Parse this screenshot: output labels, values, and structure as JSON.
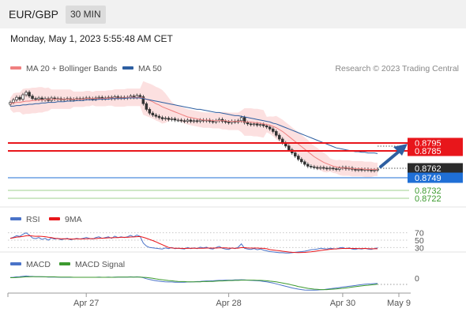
{
  "header": {
    "pair": "EUR/GBP",
    "timeframe": "30 MIN"
  },
  "datetime": "Monday, May 1, 2023 5:55:48 AM CET",
  "legend": {
    "ma20": "MA 20 + Bollinger Bands",
    "ma50": "MA 50",
    "credit": "Research © 2023 Trading Central",
    "ma20_color": "#f08080",
    "ma50_color": "#2e5fa1"
  },
  "levels": [
    {
      "label": "0.8795",
      "value": 0.8795,
      "kind": "resistance",
      "color": "#e8161b"
    },
    {
      "label": "0.8785",
      "value": 0.8785,
      "kind": "resistance",
      "color": "#e8161b"
    },
    {
      "label": "0.8762",
      "value": 0.8762,
      "kind": "last",
      "color": "#333333"
    },
    {
      "label": "0.8749",
      "value": 0.8749,
      "kind": "pivot",
      "color": "#1f6fd6"
    },
    {
      "label": "0.8732",
      "value": 0.8732,
      "kind": "support",
      "color": "#3c9a2f"
    },
    {
      "label": "0.8722",
      "value": 0.8722,
      "kind": "support",
      "color": "#3c9a2f"
    }
  ],
  "rsi_panel": {
    "rsi_label": "RSI",
    "ma_label": "9MA",
    "rsi_color": "#4a73c8",
    "ma_color": "#e8161b",
    "levels": [
      "70",
      "50",
      "30"
    ]
  },
  "macd_panel": {
    "macd_label": "MACD",
    "signal_label": "MACD Signal",
    "macd_color": "#4a73c8",
    "signal_color": "#3c9a2f",
    "zero_label": "0"
  },
  "xaxis": {
    "labels": [
      "Apr 27",
      "Apr 28",
      "Apr 30",
      "May 9"
    ]
  },
  "chart_data": {
    "type": "candlestick",
    "x_ticks": [
      "Apr 27",
      "Apr 28",
      "Apr 30",
      "May 9"
    ],
    "price_range": [
      0.8705,
      0.8905
    ],
    "close": [
      0.8868,
      0.8872,
      0.8876,
      0.8873,
      0.888,
      0.8884,
      0.8878,
      0.8874,
      0.8873,
      0.8875,
      0.8872,
      0.8874,
      0.8871,
      0.8875,
      0.8873,
      0.8874,
      0.8872,
      0.8873,
      0.8874,
      0.8872,
      0.8873,
      0.8874,
      0.8873,
      0.8874,
      0.8875,
      0.8874,
      0.8873,
      0.8875,
      0.8876,
      0.8874,
      0.8875,
      0.8876,
      0.8874,
      0.8877,
      0.8875,
      0.8876,
      0.8875,
      0.8876,
      0.8878,
      0.8876,
      0.8879,
      0.8877,
      0.8866,
      0.8857,
      0.8851,
      0.8848,
      0.8846,
      0.8844,
      0.8842,
      0.8843,
      0.8841,
      0.8842,
      0.884,
      0.884,
      0.8839,
      0.8838,
      0.884,
      0.8838,
      0.8839,
      0.8838,
      0.884,
      0.8839,
      0.884,
      0.8838,
      0.8837,
      0.8839,
      0.8841,
      0.8838,
      0.8837,
      0.8836,
      0.8838,
      0.8837,
      0.8839,
      0.8844,
      0.8836,
      0.8834,
      0.8833,
      0.8834,
      0.8832,
      0.8833,
      0.8831,
      0.8829,
      0.8826,
      0.8822,
      0.8816,
      0.881,
      0.8804,
      0.8799,
      0.8793,
      0.8788,
      0.8783,
      0.8778,
      0.8774,
      0.877,
      0.8767,
      0.8766,
      0.8765,
      0.8764,
      0.8765,
      0.8764,
      0.8763,
      0.8764,
      0.8763,
      0.8762,
      0.8764,
      0.8765,
      0.8763,
      0.8764,
      0.8762,
      0.8761,
      0.8762,
      0.8761,
      0.8762,
      0.8761,
      0.876,
      0.8761,
      0.8762
    ],
    "ma20": [
      0.8866,
      0.8867,
      0.8868,
      0.8868,
      0.8869,
      0.887,
      0.887,
      0.8871,
      0.8871,
      0.8872,
      0.8872,
      0.8872,
      0.8873,
      0.8873,
      0.8873,
      0.8873,
      0.8873,
      0.8873,
      0.8873,
      0.8873,
      0.8873,
      0.8873,
      0.8873,
      0.8873,
      0.8874,
      0.8874,
      0.8874,
      0.8874,
      0.8874,
      0.8874,
      0.8874,
      0.8875,
      0.8875,
      0.8875,
      0.8875,
      0.8875,
      0.8875,
      0.8876,
      0.8876,
      0.8876,
      0.8876,
      0.8876,
      0.8875,
      0.8873,
      0.8871,
      0.8869,
      0.8866,
      0.8864,
      0.8861,
      0.8859,
      0.8857,
      0.8855,
      0.8853,
      0.8851,
      0.8849,
      0.8847,
      0.8845,
      0.8844,
      0.8843,
      0.8842,
      0.8841,
      0.884,
      0.884,
      0.884,
      0.8839,
      0.8839,
      0.8839,
      0.8839,
      0.8839,
      0.8838,
      0.8838,
      0.8838,
      0.8838,
      0.8838,
      0.8837,
      0.8837,
      0.8837,
      0.8836,
      0.8836,
      0.8835,
      0.8834,
      0.8833,
      0.8832,
      0.883,
      0.8828,
      0.8825,
      0.8822,
      0.8818,
      0.8814,
      0.881,
      0.8806,
      0.8802,
      0.8798,
      0.8794,
      0.879,
      0.8786,
      0.8782,
      0.8779,
      0.8776,
      0.8773,
      0.8771,
      0.8769,
      0.8767,
      0.8766,
      0.8765,
      0.8764,
      0.8764,
      0.8764,
      0.8763,
      0.8763,
      0.8763,
      0.8763,
      0.8762,
      0.8762,
      0.8762,
      0.8762,
      0.8762
    ],
    "ma50": [
      0.8862,
      0.8862,
      0.8863,
      0.8863,
      0.8864,
      0.8864,
      0.8865,
      0.8865,
      0.8866,
      0.8866,
      0.8867,
      0.8867,
      0.8868,
      0.8868,
      0.8868,
      0.8869,
      0.8869,
      0.8869,
      0.887,
      0.887,
      0.887,
      0.8871,
      0.8871,
      0.8871,
      0.8872,
      0.8872,
      0.8872,
      0.8872,
      0.8873,
      0.8873,
      0.8873,
      0.8873,
      0.8874,
      0.8874,
      0.8874,
      0.8874,
      0.8874,
      0.8875,
      0.8875,
      0.8875,
      0.8875,
      0.8875,
      0.8874,
      0.8873,
      0.8872,
      0.8871,
      0.887,
      0.8869,
      0.8868,
      0.8867,
      0.8866,
      0.8865,
      0.8864,
      0.8863,
      0.8862,
      0.8861,
      0.886,
      0.8859,
      0.8858,
      0.8857,
      0.8857,
      0.8856,
      0.8855,
      0.8854,
      0.8853,
      0.8852,
      0.8852,
      0.8851,
      0.885,
      0.8849,
      0.8848,
      0.8847,
      0.8847,
      0.8846,
      0.8845,
      0.8844,
      0.8843,
      0.8842,
      0.8841,
      0.884,
      0.8839,
      0.8838,
      0.8837,
      0.8835,
      0.8834,
      0.8832,
      0.883,
      0.8828,
      0.8826,
      0.8824,
      0.8822,
      0.882,
      0.8818,
      0.8816,
      0.8814,
      0.8812,
      0.881,
      0.8808,
      0.8806,
      0.8804,
      0.8802,
      0.88,
      0.8798,
      0.8796,
      0.8795,
      0.8794,
      0.8793,
      0.8792,
      0.8791,
      0.879,
      0.879,
      0.8789,
      0.8789,
      0.8788,
      0.8788,
      0.8788,
      0.8787
    ],
    "rsi": [
      55,
      58,
      62,
      60,
      66,
      70,
      64,
      56,
      54,
      57,
      52,
      55,
      50,
      56,
      53,
      55,
      51,
      53,
      55,
      51,
      53,
      55,
      53,
      55,
      57,
      55,
      53,
      57,
      59,
      55,
      57,
      59,
      55,
      61,
      57,
      59,
      57,
      59,
      63,
      59,
      64,
      60,
      42,
      34,
      30,
      29,
      28,
      27,
      26,
      29,
      27,
      30,
      27,
      28,
      27,
      26,
      30,
      27,
      29,
      27,
      31,
      29,
      31,
      27,
      26,
      30,
      33,
      28,
      26,
      25,
      29,
      27,
      31,
      40,
      28,
      26,
      25,
      27,
      24,
      26,
      23,
      21,
      19,
      18,
      17,
      16,
      16,
      15,
      15,
      16,
      17,
      18,
      19,
      20,
      22,
      24,
      25,
      26,
      28,
      27,
      26,
      28,
      27,
      26,
      29,
      30,
      27,
      29,
      26,
      25,
      27,
      26,
      28,
      26,
      25,
      27,
      29
    ],
    "macd": [
      0.3,
      0.4,
      0.6,
      0.7,
      0.9,
      1.0,
      0.9,
      0.8,
      0.7,
      0.7,
      0.6,
      0.6,
      0.5,
      0.5,
      0.5,
      0.5,
      0.4,
      0.4,
      0.4,
      0.4,
      0.4,
      0.4,
      0.4,
      0.4,
      0.4,
      0.4,
      0.4,
      0.4,
      0.5,
      0.4,
      0.4,
      0.5,
      0.4,
      0.5,
      0.5,
      0.5,
      0.5,
      0.5,
      0.6,
      0.5,
      0.6,
      0.5,
      0.2,
      -0.3,
      -0.7,
      -1.0,
      -1.3,
      -1.5,
      -1.7,
      -1.8,
      -1.9,
      -1.9,
      -2.0,
      -2.0,
      -2.0,
      -2.0,
      -1.9,
      -1.9,
      -1.8,
      -1.7,
      -1.6,
      -1.5,
      -1.4,
      -1.4,
      -1.3,
      -1.2,
      -1.1,
      -1.1,
      -1.0,
      -1.0,
      -1.0,
      -0.9,
      -0.9,
      -0.8,
      -0.9,
      -1.0,
      -1.1,
      -1.2,
      -1.3,
      -1.4,
      -1.6,
      -1.8,
      -2.1,
      -2.4,
      -2.8,
      -3.2,
      -3.6,
      -4.0,
      -4.4,
      -4.8,
      -5.1,
      -5.4,
      -5.6,
      -5.8,
      -5.9,
      -5.9,
      -5.9,
      -5.8,
      -5.7,
      -5.6,
      -5.4,
      -5.2,
      -5.0,
      -4.8,
      -4.6,
      -4.4,
      -4.2,
      -4.0,
      -3.8,
      -3.6,
      -3.4,
      -3.2,
      -3.0,
      -2.9,
      -2.8,
      -2.7,
      -2.6
    ],
    "macd_signal": [
      0.2,
      0.2,
      0.3,
      0.4,
      0.5,
      0.6,
      0.6,
      0.7,
      0.7,
      0.7,
      0.7,
      0.6,
      0.6,
      0.6,
      0.6,
      0.5,
      0.5,
      0.5,
      0.5,
      0.5,
      0.4,
      0.4,
      0.4,
      0.4,
      0.4,
      0.4,
      0.4,
      0.4,
      0.4,
      0.4,
      0.4,
      0.4,
      0.4,
      0.4,
      0.5,
      0.5,
      0.5,
      0.5,
      0.5,
      0.5,
      0.5,
      0.5,
      0.4,
      0.3,
      0.1,
      -0.1,
      -0.4,
      -0.6,
      -0.8,
      -1.0,
      -1.2,
      -1.3,
      -1.5,
      -1.6,
      -1.7,
      -1.7,
      -1.8,
      -1.8,
      -1.8,
      -1.8,
      -1.8,
      -1.7,
      -1.7,
      -1.6,
      -1.6,
      -1.5,
      -1.4,
      -1.4,
      -1.3,
      -1.2,
      -1.2,
      -1.1,
      -1.1,
      -1.0,
      -1.0,
      -1.0,
      -1.0,
      -1.0,
      -1.1,
      -1.1,
      -1.2,
      -1.3,
      -1.5,
      -1.6,
      -1.8,
      -2.1,
      -2.4,
      -2.7,
      -3.0,
      -3.4,
      -3.7,
      -4.1,
      -4.4,
      -4.7,
      -5.0,
      -5.2,
      -5.4,
      -5.5,
      -5.6,
      -5.6,
      -5.6,
      -5.5,
      -5.4,
      -5.3,
      -5.1,
      -5.0,
      -4.8,
      -4.6,
      -4.4,
      -4.2,
      -4.0,
      -3.8,
      -3.6,
      -3.5,
      -3.3,
      -3.2,
      -3.0
    ]
  }
}
